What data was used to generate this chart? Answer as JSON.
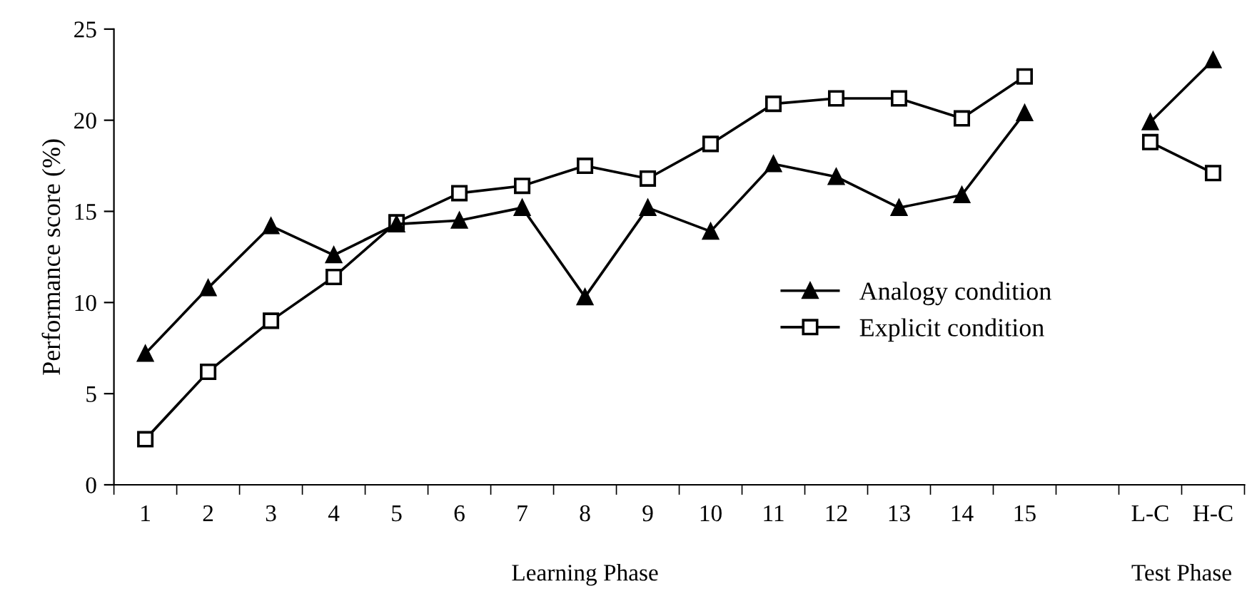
{
  "chart_data": {
    "type": "line",
    "ylabel": "Performance score (%)",
    "categories": [
      "1",
      "2",
      "3",
      "4",
      "5",
      "6",
      "7",
      "8",
      "9",
      "10",
      "11",
      "12",
      "13",
      "14",
      "15",
      null,
      "L-C",
      "H-C"
    ],
    "series": [
      {
        "name": "Analogy condition",
        "color": "#000000",
        "marker": "triangle",
        "values": [
          7.2,
          10.8,
          14.2,
          12.6,
          14.3,
          14.5,
          15.2,
          10.3,
          15.2,
          13.9,
          17.6,
          16.9,
          15.2,
          15.9,
          20.4,
          null,
          19.9,
          23.3
        ]
      },
      {
        "name": "Explicit condition",
        "color": "#000000",
        "marker": "square",
        "values": [
          2.5,
          6.2,
          9.0,
          11.4,
          14.4,
          16.0,
          16.4,
          17.5,
          16.8,
          18.7,
          20.9,
          21.2,
          21.2,
          20.1,
          22.4,
          null,
          18.8,
          17.1
        ]
      }
    ],
    "ylim": [
      0,
      25
    ],
    "yticks": [
      0,
      5,
      10,
      15,
      20,
      25
    ],
    "annotations": [
      "Learning Phase",
      "Test Phase"
    ],
    "legend": "right",
    "grid": false,
    "line_style": "solid"
  }
}
